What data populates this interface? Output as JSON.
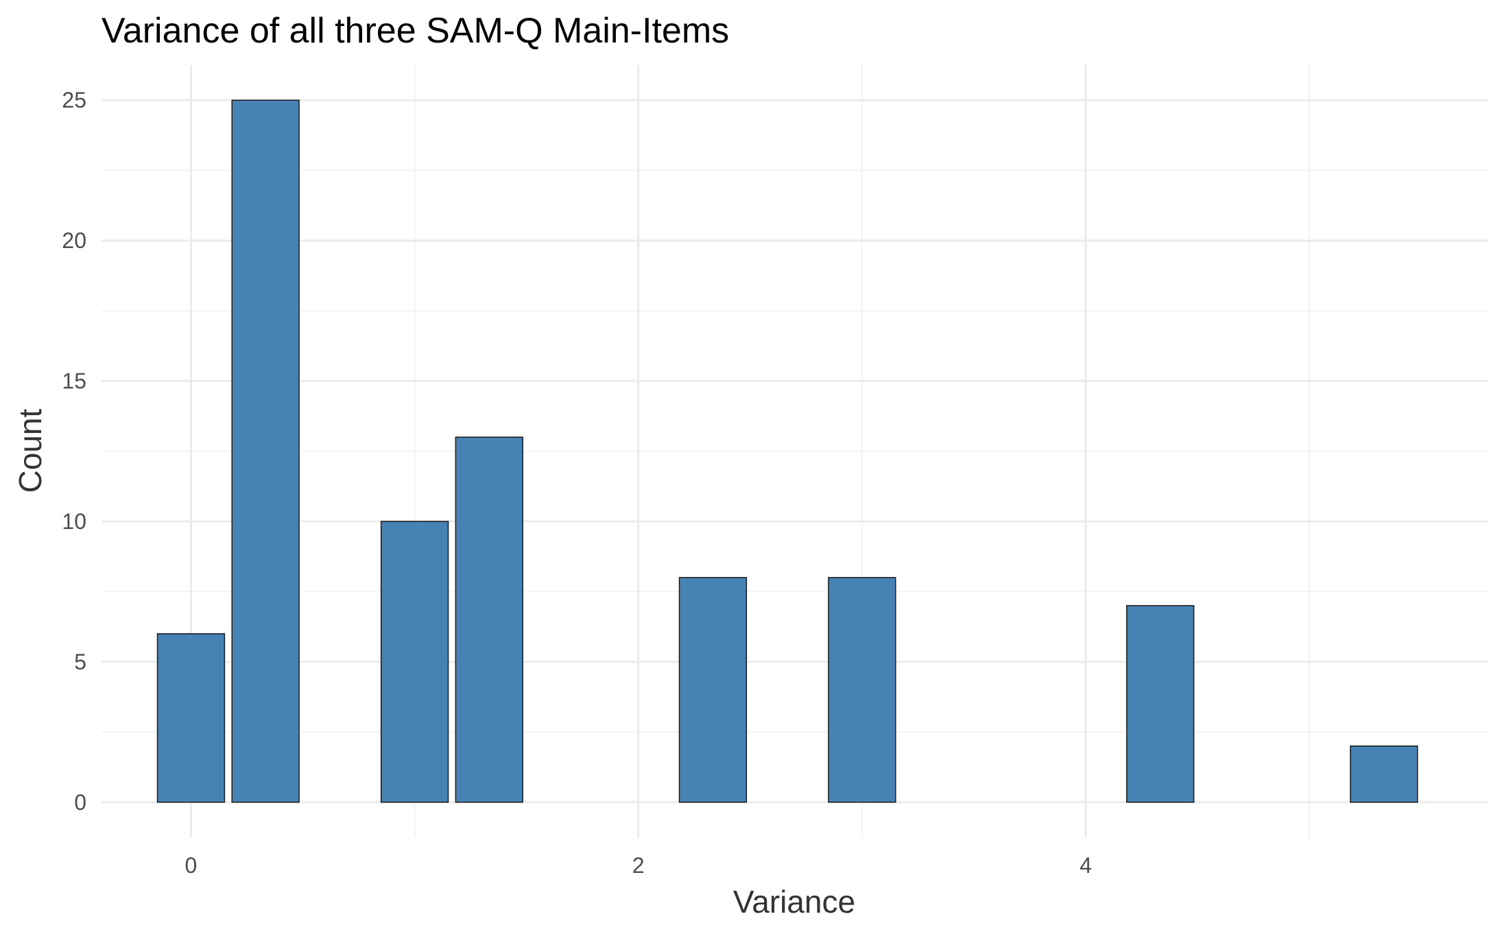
{
  "chart_data": {
    "type": "bar",
    "title": "Variance of all three SAM-Q Main-Items",
    "xlabel": "Variance",
    "ylabel": "Count",
    "x": [
      0,
      0.3333,
      1,
      1.3333,
      2.3333,
      3,
      4.3333,
      5.3333
    ],
    "values": [
      6,
      25,
      10,
      13,
      8,
      8,
      7,
      2
    ],
    "bar_width": 0.3,
    "xlim": [
      -0.4,
      5.8
    ],
    "ylim": [
      -1.25,
      26.25
    ],
    "x_ticks": [
      0,
      2,
      4
    ],
    "y_ticks": [
      0,
      5,
      10,
      15,
      20,
      25
    ],
    "grid": true,
    "legend": "none",
    "colors": {
      "bar_fill": "#4682b4",
      "bar_stroke": "#1a1a1a"
    }
  }
}
